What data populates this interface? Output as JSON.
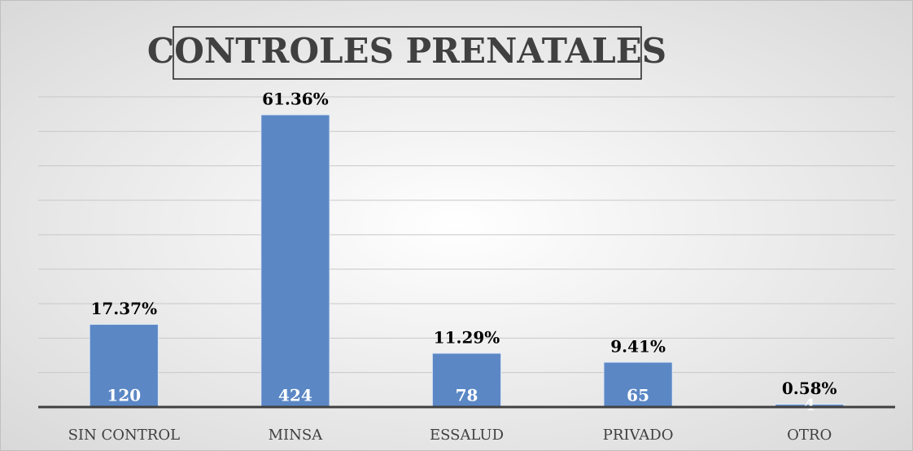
{
  "chart_data": {
    "type": "bar",
    "title": "CONTROLES PRENATALES",
    "categories": [
      "SIN CONTROL",
      "MINSA",
      "ESSALUD",
      "PRIVADO",
      "OTRO"
    ],
    "values": [
      120,
      424,
      78,
      65,
      4
    ],
    "percentages": [
      17.37,
      61.36,
      11.29,
      9.41,
      0.58
    ],
    "percentage_labels": [
      "17.37%",
      "61.36%",
      "11.29%",
      "9.41%",
      "0.58%"
    ],
    "color": "#5b87c5",
    "ylim": [
      0,
      450
    ],
    "yticks": [
      0,
      50,
      100,
      150,
      200,
      250,
      300,
      350,
      400,
      450
    ],
    "grid": true
  }
}
